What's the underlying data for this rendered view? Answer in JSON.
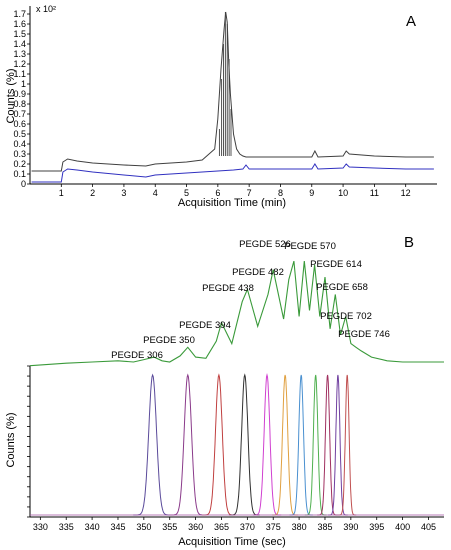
{
  "chart_data": [
    {
      "panel": "A",
      "type": "line",
      "xlabel": "Acquisition Time (min)",
      "ylabel": "Counts (%)",
      "y_multiplier": "x 10²",
      "xlim": [
        0,
        13
      ],
      "ylim": [
        0,
        1.78
      ],
      "x_ticks": [
        1,
        2,
        3,
        4,
        5,
        6,
        7,
        8,
        9,
        10,
        11,
        12
      ],
      "y_ticks": [
        0,
        0.1,
        0.2,
        0.3,
        0.4,
        0.5,
        0.6,
        0.7,
        0.8,
        0.9,
        1,
        1.1,
        1.2,
        1.3,
        1.4,
        1.5,
        1.6,
        1.7
      ],
      "y_tick_labels": [
        "0",
        "0.1",
        "0.2",
        "0.3",
        "0.4",
        "0.5",
        "0.6",
        "0.7",
        "0.8",
        "0.9",
        "1",
        "1.1",
        "1.2",
        "1.3",
        "1.4",
        "1.5",
        "1.6",
        "1.7"
      ],
      "grid": false,
      "series": [
        {
          "color": "#404040",
          "x": [
            0.05,
            1.0,
            1.05,
            1.2,
            1.5,
            2.0,
            3.0,
            3.7,
            4.0,
            5.0,
            5.5,
            5.9,
            6.0,
            6.1,
            6.2,
            6.25,
            6.3,
            6.35,
            6.4,
            6.5,
            6.6,
            6.7,
            6.8,
            6.9,
            7.0,
            8.0,
            9.0,
            9.1,
            9.2,
            10.0,
            10.1,
            10.2,
            11.0,
            12.0,
            12.9
          ],
          "y": [
            0.13,
            0.13,
            0.22,
            0.25,
            0.23,
            0.21,
            0.19,
            0.18,
            0.2,
            0.22,
            0.24,
            0.35,
            0.65,
            1.15,
            1.55,
            1.72,
            1.62,
            1.2,
            0.9,
            0.5,
            0.35,
            0.3,
            0.28,
            0.27,
            0.27,
            0.27,
            0.27,
            0.33,
            0.27,
            0.28,
            0.33,
            0.3,
            0.28,
            0.27,
            0.27
          ]
        },
        {
          "color": "#3030c0",
          "x": [
            0.05,
            1.0,
            1.05,
            1.2,
            1.5,
            2.0,
            3.0,
            3.7,
            4.0,
            5.0,
            5.5,
            6.0,
            6.5,
            6.8,
            6.9,
            7.0,
            8.0,
            9.0,
            9.1,
            9.2,
            10.0,
            10.1,
            10.2,
            11.0,
            12.0,
            12.9
          ],
          "y": [
            0.02,
            0.02,
            0.12,
            0.15,
            0.14,
            0.12,
            0.09,
            0.07,
            0.09,
            0.11,
            0.12,
            0.13,
            0.14,
            0.15,
            0.19,
            0.15,
            0.15,
            0.15,
            0.2,
            0.15,
            0.16,
            0.2,
            0.17,
            0.16,
            0.15,
            0.15
          ]
        }
      ]
    },
    {
      "panel": "B",
      "type": "line",
      "xlabel": "Acquisition Time (sec)",
      "ylabel": "Counts (%)",
      "xlim": [
        328,
        408
      ],
      "x_ticks": [
        330,
        335,
        340,
        345,
        350,
        355,
        360,
        365,
        370,
        375,
        380,
        385,
        390,
        395,
        400,
        405
      ],
      "grid": false,
      "tic_color": "#3a9a3a",
      "tic_series": {
        "x": [
          328,
          335,
          340,
          345,
          348,
          350,
          352,
          353.5,
          355,
          357,
          358.5,
          360,
          362,
          364,
          365,
          367,
          369,
          370,
          372,
          374,
          375,
          377,
          378,
          379,
          380,
          381,
          382,
          383,
          384,
          385,
          386,
          387,
          388,
          389,
          390,
          391,
          392,
          394,
          397,
          400,
          405,
          408
        ],
        "y": [
          0.1,
          0.12,
          0.13,
          0.14,
          0.13,
          0.15,
          0.17,
          0.14,
          0.13,
          0.18,
          0.25,
          0.17,
          0.16,
          0.3,
          0.45,
          0.28,
          0.62,
          0.72,
          0.42,
          0.68,
          0.88,
          0.48,
          0.8,
          0.95,
          0.5,
          0.95,
          0.55,
          0.92,
          0.5,
          0.82,
          0.4,
          0.68,
          0.35,
          0.5,
          0.28,
          0.25,
          0.22,
          0.17,
          0.14,
          0.13,
          0.13,
          0.13
        ]
      },
      "peak_labels": [
        {
          "label": "PEGDE 306",
          "rt": 351.5
        },
        {
          "label": "PEGDE 350",
          "rt": 358.5
        },
        {
          "label": "PEGDE 394",
          "rt": 364.5
        },
        {
          "label": "PEGDE 438",
          "rt": 369.5
        },
        {
          "label": "PEGDE 482",
          "rt": 373.5
        },
        {
          "label": "PEGDE 526",
          "rt": 377.0
        },
        {
          "label": "PEGDE 570",
          "rt": 380.5
        },
        {
          "label": "PEGDE 614",
          "rt": 383.5
        },
        {
          "label": "PEGDE 658",
          "rt": 385.5
        },
        {
          "label": "PEGDE 702",
          "rt": 387.5
        },
        {
          "label": "PEGDE 746",
          "rt": 389.0
        }
      ],
      "eic_series": [
        {
          "center": 351.7,
          "width": 0.75,
          "color": "#5a4a9a"
        },
        {
          "center": 358.5,
          "width": 0.7,
          "color": "#8a3a8a"
        },
        {
          "center": 364.5,
          "width": 0.65,
          "color": "#c04040"
        },
        {
          "center": 369.5,
          "width": 0.6,
          "color": "#303030"
        },
        {
          "center": 373.8,
          "width": 0.55,
          "color": "#d040d0"
        },
        {
          "center": 377.3,
          "width": 0.5,
          "color": "#e0a040"
        },
        {
          "center": 380.4,
          "width": 0.45,
          "color": "#4a90d0"
        },
        {
          "center": 383.2,
          "width": 0.42,
          "color": "#50b050"
        },
        {
          "center": 385.5,
          "width": 0.4,
          "color": "#a03060"
        },
        {
          "center": 387.5,
          "width": 0.38,
          "color": "#7040a0"
        },
        {
          "center": 389.3,
          "width": 0.36,
          "color": "#c05050"
        }
      ]
    }
  ],
  "panel_labels": {
    "a": "A",
    "b": "B"
  }
}
